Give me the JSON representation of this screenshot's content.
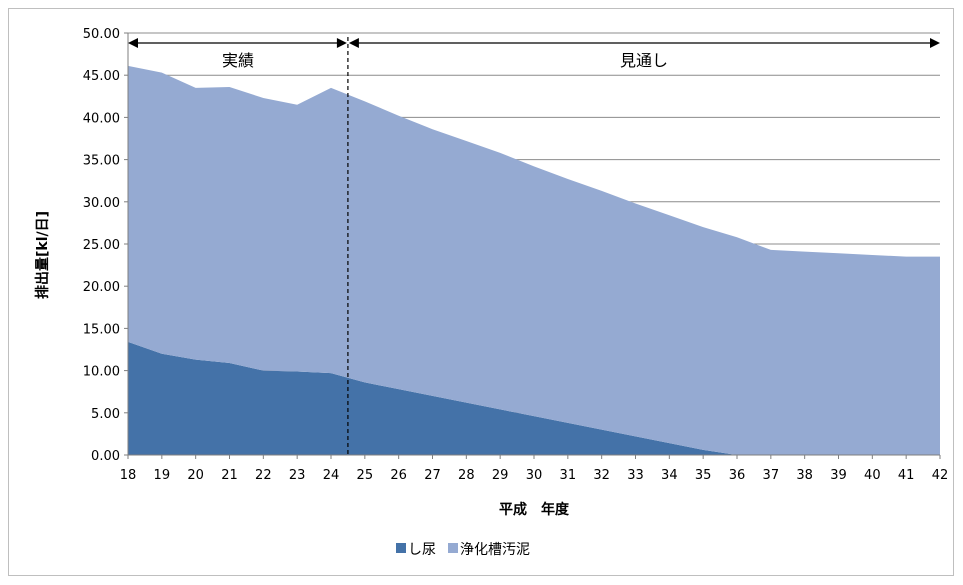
{
  "chart_data": {
    "type": "area",
    "stacked": true,
    "x": [
      18,
      19,
      20,
      21,
      22,
      23,
      24,
      25,
      26,
      27,
      28,
      29,
      30,
      31,
      32,
      33,
      34,
      35,
      36,
      37,
      38,
      39,
      40,
      41,
      42
    ],
    "x_tick_labels": [
      "18",
      "19",
      "20",
      "21",
      "22",
      "23",
      "24",
      "25",
      "26",
      "27",
      "28",
      "29",
      "30",
      "31",
      "32",
      "33",
      "34",
      "35",
      "36",
      "37",
      "38",
      "39",
      "40",
      "41",
      "42"
    ],
    "series": [
      {
        "name": "し尿",
        "color": "#4472a8",
        "values": [
          13.4,
          12.0,
          11.3,
          10.9,
          10.0,
          9.9,
          9.7,
          8.6,
          7.8,
          7.0,
          6.2,
          5.4,
          4.6,
          3.8,
          3.0,
          2.2,
          1.4,
          0.6,
          0.0,
          0.0,
          0.0,
          0.0,
          0.0,
          0.0,
          0.0
        ]
      },
      {
        "name": "浄化槽汚泥",
        "color": "#95aad2",
        "values": [
          32.7,
          33.3,
          32.2,
          32.7,
          32.3,
          31.6,
          33.8,
          33.3,
          32.4,
          31.6,
          31.0,
          30.4,
          29.6,
          28.9,
          28.3,
          27.6,
          27.0,
          26.4,
          25.8,
          24.3,
          24.1,
          23.9,
          23.7,
          23.5,
          23.5
        ]
      }
    ],
    "ylabel": "排出量[kl/日]",
    "xlabel": "平成　年度",
    "ylim": [
      0,
      50
    ],
    "y_ticks": [
      "0.00",
      "5.00",
      "10.00",
      "15.00",
      "20.00",
      "25.00",
      "30.00",
      "35.00",
      "40.00",
      "45.00",
      "50.00"
    ],
    "grid": true,
    "legend_position": "bottom",
    "annotations": {
      "actual_label": "実績",
      "projection_label": "見通し",
      "divider_x": 24.5
    }
  }
}
